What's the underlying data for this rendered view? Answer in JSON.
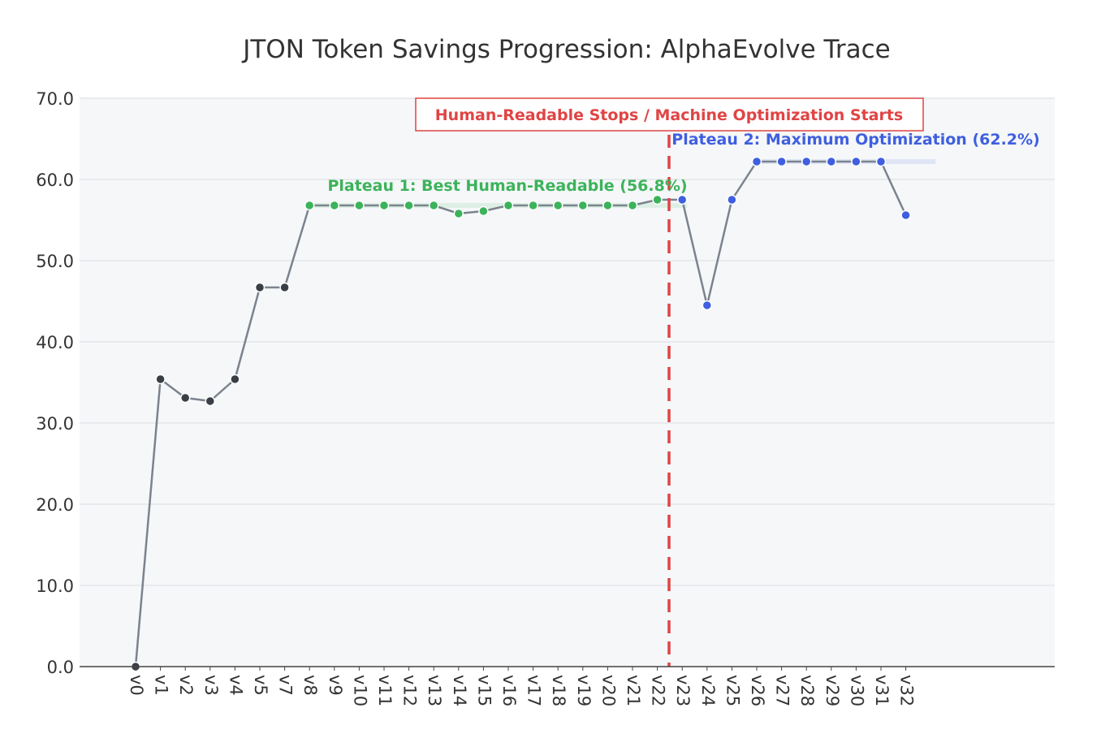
{
  "chart_data": {
    "type": "line",
    "title": "JTON Token Savings Progression: AlphaEvolve Trace",
    "xlabel": "",
    "ylabel": "",
    "ylim": [
      0,
      70
    ],
    "yticks": [
      "0.0",
      "10.0",
      "20.0",
      "30.0",
      "40.0",
      "50.0",
      "60.0",
      "70.0"
    ],
    "grid": true,
    "categories": [
      "v0",
      "v1",
      "v2",
      "v3",
      "v4",
      "v5",
      "v7",
      "v8",
      "v9",
      "v10",
      "v11",
      "v12",
      "v13",
      "v14",
      "v15",
      "v16",
      "v17",
      "v18",
      "v19",
      "v20",
      "v21",
      "v22",
      "v23",
      "v24",
      "v25",
      "v26",
      "v27",
      "v28",
      "v29",
      "v30",
      "v31",
      "v32"
    ],
    "values": [
      0,
      35.4,
      33.1,
      32.7,
      35.4,
      46.7,
      46.7,
      56.8,
      56.8,
      56.8,
      56.8,
      56.8,
      56.8,
      55.8,
      56.1,
      56.8,
      56.8,
      56.8,
      56.8,
      56.8,
      56.8,
      57.5,
      57.5,
      44.5,
      57.5,
      62.2,
      62.2,
      62.2,
      62.2,
      62.2,
      62.2,
      55.6
    ],
    "phase_colors": {
      "early": "#3a3f45",
      "plateau1": "#3cb35a",
      "machine": "#3f5fe0",
      "line": "#7b838d",
      "divider": "#e04444"
    },
    "annotations": {
      "plateau1": "Plateau 1: Best Human-Readable (56.8%)",
      "plateau2": "Plateau 2: Maximum Optimization (62.2%)",
      "divider": "Human-Readable Stops / Machine Optimization Starts"
    },
    "plateau1_range": [
      7,
      21
    ],
    "plateau1_level": 56.8,
    "plateau2_range": [
      25,
      31
    ],
    "plateau2_level": 62.2,
    "divider_after_index": 22
  }
}
